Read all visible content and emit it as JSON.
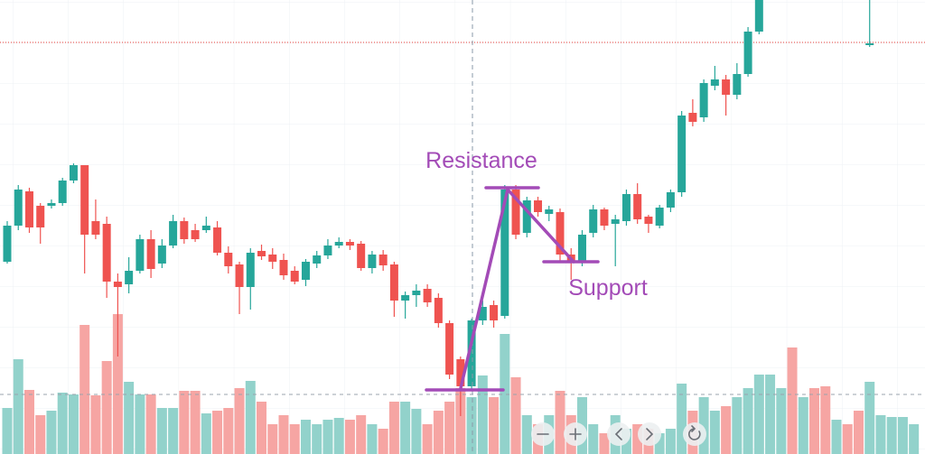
{
  "chart_data": {
    "type": "candlestick",
    "annotations": [
      "Resistance",
      "Support"
    ],
    "up_color": "#26a69a",
    "down_color": "#ef5350",
    "open": [
      213,
      253,
      291,
      275,
      275,
      278,
      303,
      320,
      258,
      255,
      191,
      188,
      203,
      238,
      211,
      231,
      258,
      248,
      248,
      251,
      223,
      210,
      185,
      225,
      221,
      215,
      203,
      193,
      211,
      220,
      231,
      235,
      233,
      206,
      221,
      210,
      170,
      176,
      183,
      173,
      145,
      105,
      75,
      148,
      165,
      153,
      293,
      245,
      281,
      266,
      268,
      221,
      213,
      245,
      271,
      255,
      258,
      288,
      263,
      253,
      273,
      290,
      378,
      373,
      408,
      415,
      398,
      421,
      468,
      null,
      null,
      null,
      null,
      null,
      null,
      null,
      null,
      null,
      453,
      null,
      null,
      null,
      null
    ],
    "high": [
      258,
      298,
      295,
      278,
      282,
      306,
      322,
      320,
      282,
      263,
      200,
      218,
      243,
      248,
      238,
      265,
      262,
      255,
      263,
      258,
      230,
      213,
      228,
      232,
      228,
      222,
      208,
      216,
      225,
      238,
      240,
      238,
      236,
      225,
      226,
      213,
      180,
      188,
      188,
      178,
      148,
      108,
      150,
      170,
      170,
      298,
      298,
      285,
      285,
      275,
      272,
      228,
      248,
      276,
      273,
      265,
      293,
      300,
      265,
      276,
      293,
      380,
      393,
      415,
      430,
      420,
      433,
      473,
      520,
      null,
      null,
      null,
      null,
      null,
      null,
      null,
      null,
      null,
      520,
      null,
      null,
      null,
      null
    ],
    "low": [
      211,
      248,
      245,
      233,
      272,
      275,
      300,
      200,
      238,
      173,
      108,
      178,
      200,
      195,
      206,
      228,
      233,
      235,
      245,
      220,
      200,
      155,
      160,
      215,
      205,
      193,
      188,
      186,
      206,
      216,
      228,
      226,
      203,
      200,
      203,
      152,
      150,
      163,
      163,
      140,
      83,
      42,
      70,
      143,
      140,
      150,
      238,
      240,
      263,
      258,
      213,
      193,
      208,
      240,
      248,
      208,
      253,
      255,
      245,
      250,
      268,
      285,
      363,
      368,
      403,
      375,
      393,
      418,
      465,
      null,
      null,
      null,
      null,
      null,
      null,
      null,
      null,
      null,
      451,
      null,
      null,
      null,
      null
    ],
    "close": [
      253,
      293,
      251,
      251,
      278,
      303,
      320,
      243,
      243,
      191,
      185,
      203,
      238,
      205,
      231,
      258,
      238,
      238,
      253,
      223,
      208,
      185,
      223,
      219,
      213,
      198,
      191,
      213,
      220,
      231,
      235,
      231,
      206,
      221,
      209,
      170,
      176,
      181,
      168,
      145,
      88,
      75,
      148,
      163,
      148,
      293,
      243,
      281,
      268,
      271,
      221,
      213,
      243,
      271,
      253,
      260,
      288,
      260,
      255,
      273,
      290,
      375,
      368,
      411,
      415,
      398,
      421,
      468,
      503,
      null,
      null,
      null,
      null,
      null,
      null,
      null,
      null,
      null,
      455,
      null,
      null,
      null,
      null
    ],
    "ylim": [
      0,
      503
    ],
    "price_line": 456,
    "price_line_color": "#e53935",
    "volume": {
      "values": [
        51,
        105,
        71,
        43,
        48,
        68,
        66,
        143,
        65,
        103,
        155,
        80,
        66,
        66,
        51,
        51,
        70,
        70,
        45,
        48,
        51,
        73,
        81,
        58,
        33,
        43,
        33,
        38,
        33,
        38,
        40,
        38,
        43,
        33,
        28,
        58,
        58,
        50,
        33,
        48,
        58,
        73,
        63,
        87,
        63,
        133,
        85,
        43,
        33,
        43,
        70,
        43,
        63,
        33,
        23,
        43,
        28,
        33,
        28,
        23,
        28,
        78,
        48,
        63,
        48,
        53,
        63,
        73,
        88,
        88,
        73,
        118,
        63,
        73,
        75,
        38,
        33,
        48,
        80,
        43,
        41,
        41,
        33
      ],
      "up": [
        1,
        1,
        0,
        0,
        1,
        1,
        1,
        0,
        0,
        0,
        0,
        1,
        1,
        0,
        1,
        1,
        0,
        0,
        1,
        0,
        0,
        0,
        1,
        0,
        0,
        0,
        0,
        1,
        1,
        1,
        1,
        0,
        0,
        1,
        0,
        0,
        1,
        1,
        0,
        0,
        0,
        0,
        1,
        1,
        0,
        1,
        0,
        1,
        0,
        1,
        0,
        0,
        1,
        1,
        0,
        1,
        1,
        0,
        0,
        1,
        1,
        1,
        0,
        1,
        1,
        0,
        1,
        1,
        1,
        1,
        1,
        0,
        1,
        0,
        0,
        1,
        0,
        0,
        1,
        1,
        1,
        1,
        1
      ],
      "up_color": "#92d2cb",
      "down_color": "#f6a5a3",
      "ylim": [
        0,
        503
      ],
      "average_line": 66
    }
  }
}
